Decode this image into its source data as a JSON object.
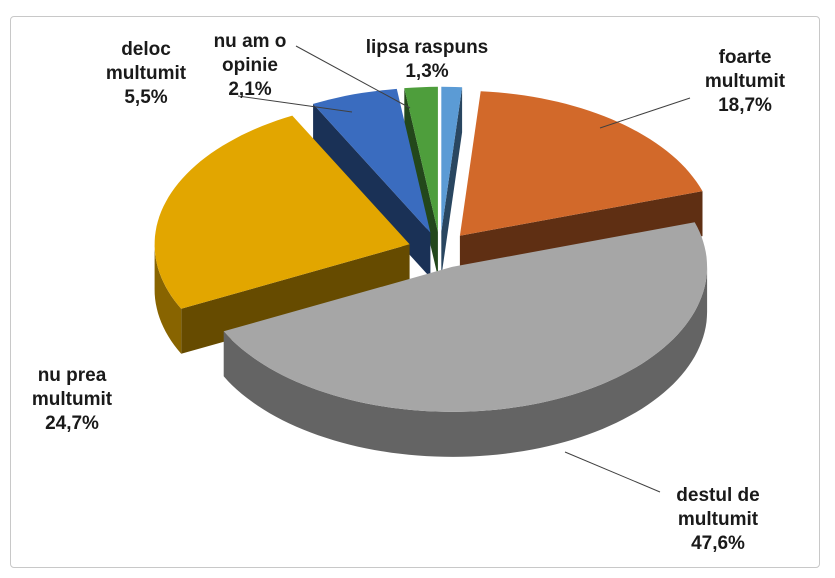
{
  "chart_data": {
    "type": "pie",
    "categories": [
      "lipsa raspuns",
      "foarte multumit",
      "destul de multumit",
      "nu prea multumit",
      "deloc multumit",
      "nu am o opinie"
    ],
    "values": [
      1.3,
      18.7,
      47.6,
      24.7,
      5.5,
      2.1
    ],
    "value_labels": [
      "1,3%",
      "18,7%",
      "47,6%",
      "24,7%",
      "5,5%",
      "2,1%"
    ],
    "colors": [
      "#5b9bd5",
      "#d2692a",
      "#a6a6a6",
      "#e2a600",
      "#3a6cbf",
      "#4e9e3c"
    ]
  }
}
